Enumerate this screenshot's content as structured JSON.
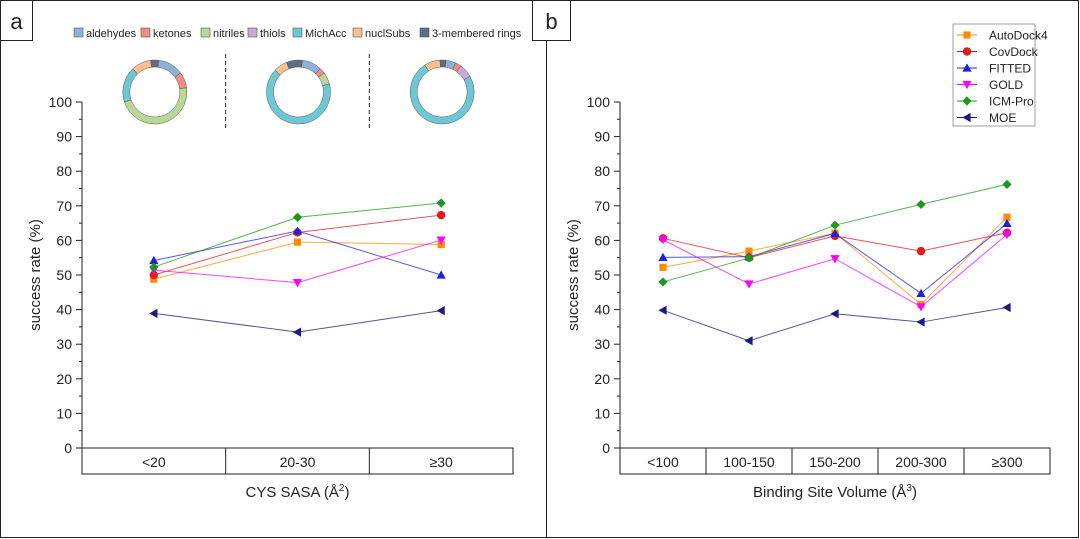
{
  "colors": {
    "AutoDock4": "#ff8c00",
    "CovDock": "#e41a1c",
    "FITTED": "#1f1fe0",
    "GOLD": "#ff00ff",
    "ICM-Pro": "#1a9a1a",
    "MOE": "#1a1a80",
    "aldehydes": "#8fb0d8",
    "ketones": "#f08b86",
    "nitriles": "#b8d89a",
    "thiols": "#c9a9d9",
    "MichAcc": "#6cc7d6",
    "nuclSubs": "#f7c08e",
    "3-membered rings": "#5b6f85"
  },
  "chart_data": [
    {
      "panel_label": "a",
      "type": "line",
      "xlabel_base": "CYS SASA (Å",
      "xlabel_sup": "2",
      "xlabel_end": ")",
      "ylabel": "success rate (%)",
      "ylim": [
        0,
        100
      ],
      "y_ticks": [
        "0",
        "10",
        "20",
        "30",
        "40",
        "50",
        "60",
        "70",
        "80",
        "90",
        "100"
      ],
      "categories": [
        "<20",
        "20-30",
        "≥30"
      ],
      "series": [
        {
          "name": "AutoDock4",
          "marker": "square",
          "values": [
            48.8,
            59.5,
            58.8
          ]
        },
        {
          "name": "CovDock",
          "marker": "circle",
          "values": [
            50.0,
            62.3,
            67.3
          ]
        },
        {
          "name": "FITTED",
          "marker": "triangle-up",
          "values": [
            54.2,
            62.7,
            50.0
          ]
        },
        {
          "name": "GOLD",
          "marker": "triangle-down",
          "values": [
            51.4,
            47.8,
            60.1
          ]
        },
        {
          "name": "ICM-Pro",
          "marker": "diamond",
          "values": [
            52.3,
            66.7,
            70.8
          ]
        },
        {
          "name": "MOE",
          "marker": "triangle-left",
          "values": [
            38.9,
            33.5,
            39.7
          ]
        }
      ],
      "legend_items": [
        "aldehydes",
        "ketones",
        "nitriles",
        "thiols",
        "MichAcc",
        "nuclSubs",
        "3-membered rings"
      ],
      "donuts": [
        {
          "category": "<20",
          "fractions": [
            0.13,
            0.08,
            0.47,
            0.0,
            0.18,
            0.1,
            0.04
          ]
        },
        {
          "category": "20-30",
          "fractions": [
            0.1,
            0.03,
            0.06,
            0.0,
            0.66,
            0.07,
            0.08
          ]
        },
        {
          "category": "≥30",
          "fractions": [
            0.05,
            0.03,
            0.0,
            0.07,
            0.74,
            0.08,
            0.03
          ]
        }
      ]
    },
    {
      "panel_label": "b",
      "type": "line",
      "xlabel_base": "Binding Site Volume (Å",
      "xlabel_sup": "3",
      "xlabel_end": ")",
      "ylabel": "success rate (%)",
      "ylim": [
        0,
        100
      ],
      "y_ticks": [
        "0",
        "10",
        "20",
        "30",
        "40",
        "50",
        "60",
        "70",
        "80",
        "90",
        "100"
      ],
      "categories": [
        "<100",
        "100-150",
        "150-200",
        "200-300",
        "≥300"
      ],
      "legend_position": "top-right",
      "series": [
        {
          "name": "AutoDock4",
          "marker": "square",
          "values": [
            52.2,
            56.9,
            62.1,
            41.5,
            66.7
          ]
        },
        {
          "name": "CovDock",
          "marker": "circle",
          "values": [
            60.6,
            55.0,
            61.3,
            56.9,
            62.2
          ]
        },
        {
          "name": "FITTED",
          "marker": "triangle-up",
          "values": [
            55.1,
            55.3,
            62.0,
            44.7,
            64.9
          ]
        },
        {
          "name": "GOLD",
          "marker": "triangle-down",
          "values": [
            60.2,
            47.4,
            54.7,
            40.8,
            61.7
          ]
        },
        {
          "name": "ICM-Pro",
          "marker": "diamond",
          "values": [
            48.0,
            54.9,
            64.4,
            70.4,
            76.2
          ]
        },
        {
          "name": "MOE",
          "marker": "triangle-left",
          "values": [
            39.8,
            31.0,
            38.8,
            36.4,
            40.6
          ]
        }
      ]
    }
  ]
}
